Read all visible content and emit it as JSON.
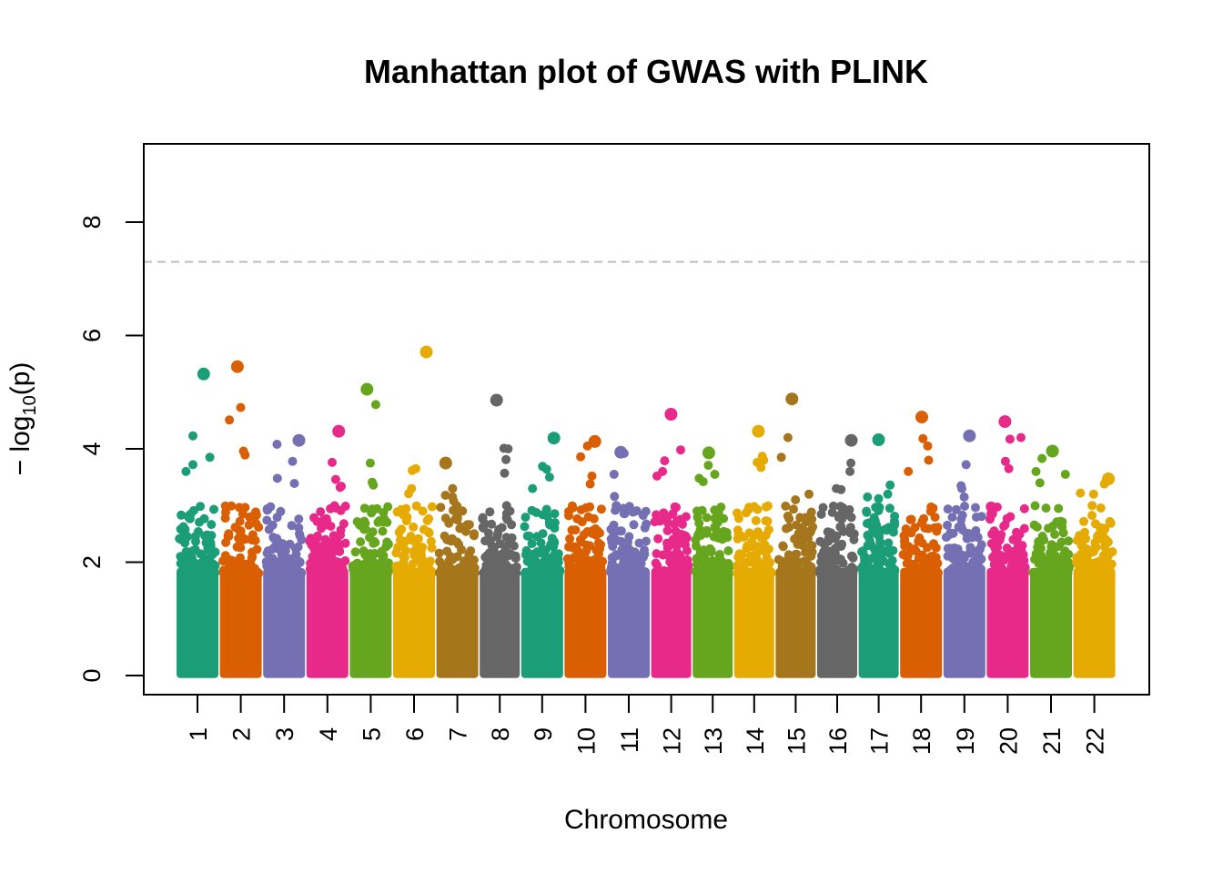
{
  "chart_data": {
    "type": "scatter",
    "title": "Manhattan plot of GWAS with PLINK",
    "xlabel": "Chromosome",
    "ylabel": "−log10(p)",
    "ylim": [
      -0.3,
      9.4
    ],
    "yticks": [
      0,
      2,
      4,
      6,
      8
    ],
    "genome_wide_threshold": 7.3,
    "grid": false,
    "legend": "none",
    "palette": [
      "#1b9e77",
      "#d95f02",
      "#7570b3",
      "#e7298a",
      "#66a61e",
      "#e6ab02",
      "#a6761d",
      "#666666"
    ],
    "chromosomes": [
      {
        "label": "1",
        "max": 5.32,
        "top_points": [
          5.32,
          4.23,
          3.85,
          3.72,
          3.6
        ]
      },
      {
        "label": "2",
        "max": 5.45,
        "top_points": [
          5.45,
          4.73,
          4.51,
          3.96,
          3.89
        ]
      },
      {
        "label": "3",
        "max": 4.15,
        "top_points": [
          4.15,
          4.08,
          3.78,
          3.48,
          3.39
        ]
      },
      {
        "label": "4",
        "max": 4.31,
        "top_points": [
          4.31,
          3.76,
          3.46,
          3.34,
          3.32
        ]
      },
      {
        "label": "5",
        "max": 5.05,
        "top_points": [
          5.05,
          4.78,
          3.75,
          3.41,
          3.36
        ]
      },
      {
        "label": "6",
        "max": 5.71,
        "top_points": [
          5.71,
          3.65,
          3.62,
          3.3,
          3.21
        ]
      },
      {
        "label": "7",
        "max": 3.75,
        "top_points": [
          3.75,
          3.3,
          3.18,
          3.15,
          3.08
        ]
      },
      {
        "label": "8",
        "max": 4.86,
        "top_points": [
          4.86,
          4.01,
          4.0,
          3.81,
          3.57
        ]
      },
      {
        "label": "9",
        "max": 4.19,
        "top_points": [
          4.19,
          3.69,
          3.64,
          3.5,
          3.3
        ]
      },
      {
        "label": "10",
        "max": 4.13,
        "top_points": [
          4.13,
          4.05,
          3.86,
          3.52,
          3.38
        ]
      },
      {
        "label": "11",
        "max": 3.94,
        "top_points": [
          3.94,
          3.92,
          3.55,
          3.16,
          3.0
        ]
      },
      {
        "label": "12",
        "max": 4.61,
        "top_points": [
          4.61,
          3.98,
          3.79,
          3.6,
          3.52
        ]
      },
      {
        "label": "13",
        "max": 3.93,
        "top_points": [
          3.93,
          3.71,
          3.55,
          3.48,
          3.42
        ]
      },
      {
        "label": "14",
        "max": 4.31,
        "top_points": [
          4.31,
          3.87,
          3.8,
          3.76,
          3.67
        ]
      },
      {
        "label": "15",
        "max": 4.88,
        "top_points": [
          4.88,
          4.2,
          3.85,
          3.2,
          3.1
        ]
      },
      {
        "label": "16",
        "max": 4.15,
        "top_points": [
          4.15,
          3.75,
          3.6,
          3.3,
          3.28
        ]
      },
      {
        "label": "17",
        "max": 4.16,
        "top_points": [
          4.16,
          3.36,
          3.2,
          3.15,
          3.12
        ]
      },
      {
        "label": "18",
        "max": 4.56,
        "top_points": [
          4.56,
          4.18,
          4.05,
          3.8,
          3.6
        ]
      },
      {
        "label": "19",
        "max": 4.23,
        "top_points": [
          4.23,
          3.72,
          3.35,
          3.3,
          3.15
        ]
      },
      {
        "label": "20",
        "max": 4.48,
        "top_points": [
          4.48,
          4.2,
          4.17,
          3.78,
          3.65
        ]
      },
      {
        "label": "21",
        "max": 3.96,
        "top_points": [
          3.96,
          3.83,
          3.6,
          3.55,
          3.4
        ]
      },
      {
        "label": "22",
        "max": 3.47,
        "top_points": [
          3.47,
          3.4,
          3.38,
          3.22,
          3.2
        ]
      }
    ]
  }
}
